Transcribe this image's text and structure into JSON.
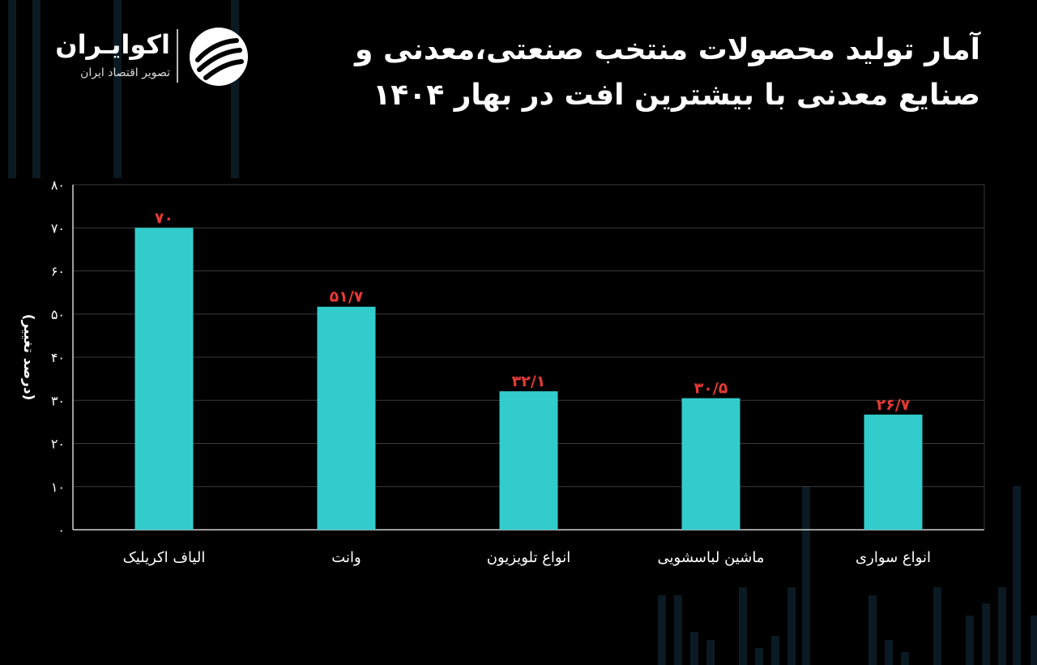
{
  "header": {
    "title_line1": "آمار تولید محصولات منتخب صنعتی،معدنی و",
    "title_line2": "صنایع معدنی با بیشترین افت در بهار ۱۴۰۴"
  },
  "logo": {
    "name": "اکوایـران",
    "subtitle": "تصویر اقتصاد ایران",
    "icon": "ekoiran-swirl-logo-icon"
  },
  "colors": {
    "background": "#000000",
    "bar": "#33cccc",
    "value_label": "#e53935",
    "grid": "#3a3a3a",
    "text": "#ffffff"
  },
  "chart_data": {
    "type": "bar",
    "title": "آمار تولید محصولات منتخب صنعتی،معدنی و صنایع معدنی با بیشترین افت در بهار ۱۴۰۴",
    "categories": [
      "الیاف اکریلیک",
      "وانت",
      "انواع تلویزیون",
      "ماشین لباسشویی",
      "انواع سواری"
    ],
    "values": [
      70,
      51.7,
      32.1,
      30.5,
      26.7
    ],
    "value_labels": [
      "۷۰",
      "۵۱/۷",
      "۳۲/۱",
      "۳۰/۵",
      "۲۶/۷"
    ],
    "ylabel": "(درصد تغییر)",
    "xlabel": "",
    "ylim": [
      0,
      80
    ],
    "yticks": [
      0,
      10,
      20,
      30,
      40,
      50,
      60,
      70,
      80
    ],
    "ytick_labels": [
      "۰",
      "۱۰",
      "۲۰",
      "۳۰",
      "۴۰",
      "۵۰",
      "۶۰",
      "۷۰",
      "۸۰"
    ],
    "grid": true,
    "legend": "none"
  }
}
